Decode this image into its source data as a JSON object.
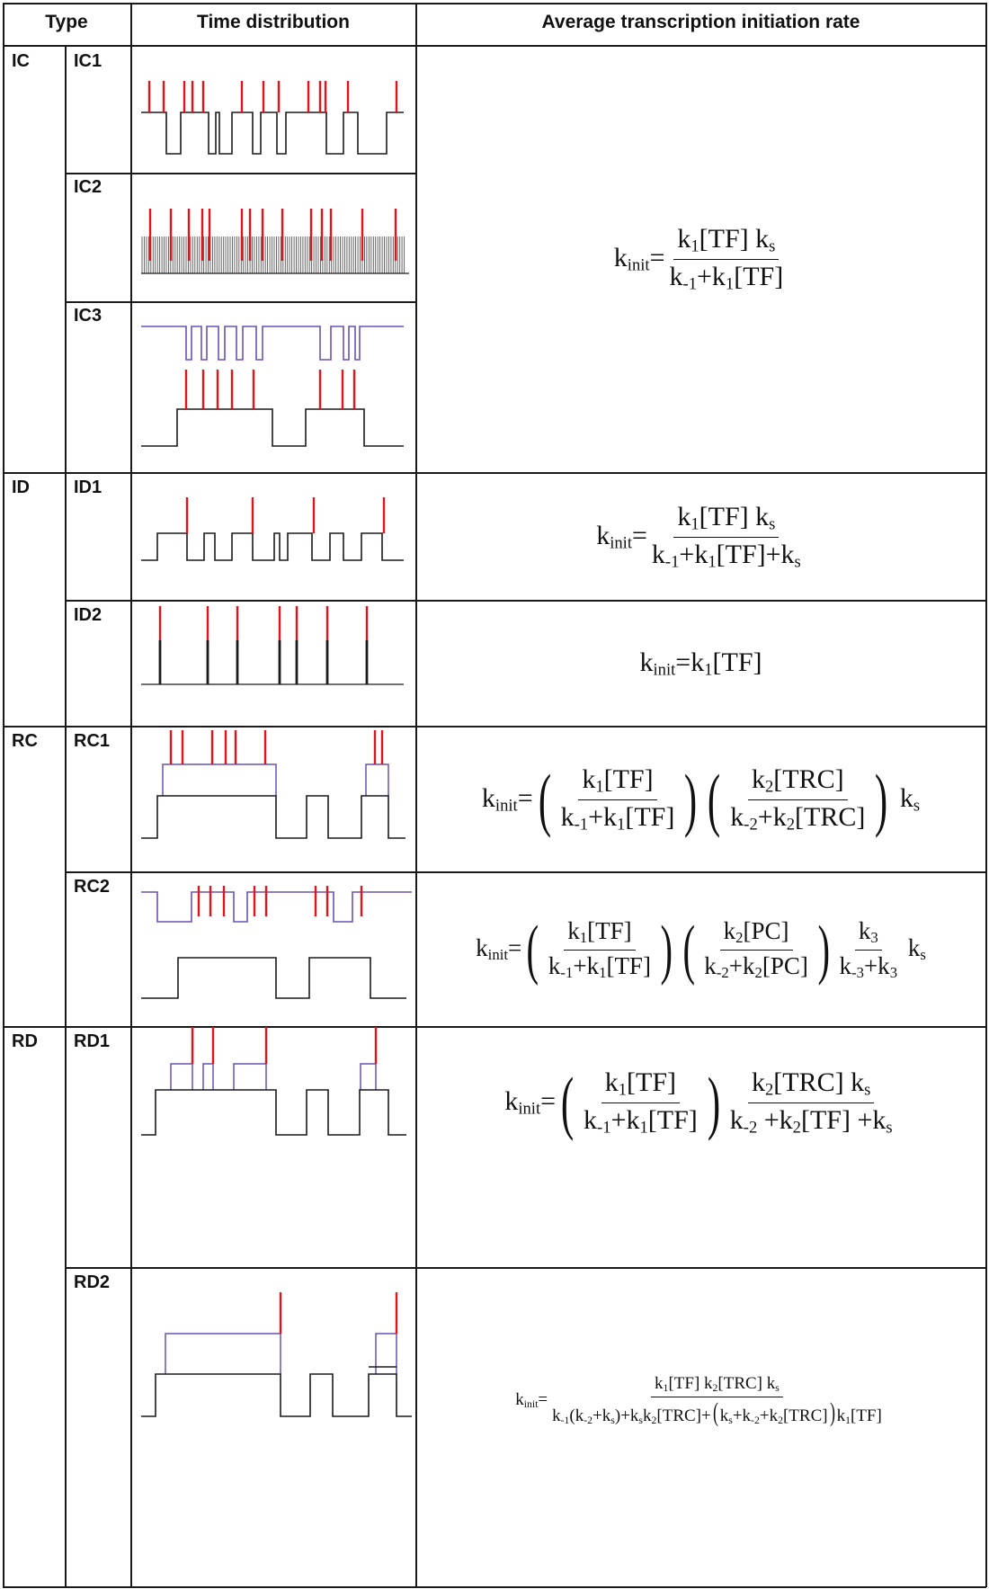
{
  "headers": {
    "type": "Type",
    "time_distribution": "Time distribution",
    "rate": "Average transcription initiation rate"
  },
  "groups": [
    "IC",
    "ID",
    "RC",
    "RD"
  ],
  "subtypes": [
    "IC1",
    "IC2",
    "IC3",
    "ID1",
    "ID2",
    "RC1",
    "RC2",
    "RD1",
    "RD2"
  ],
  "formulas": {
    "IC": "k_init = k1[TF] ks / (k-1 + k1[TF])",
    "ID1": "k_init = k1[TF] ks / (k-1 + k1[TF] + ks)",
    "ID2": "k_init = k1[TF]",
    "RC1": "k_init = (k1[TF] / (k-1 + k1[TF])) (k2[TRC] / (k-2 + k2[TRC])) ks",
    "RC2": "k_init = (k1[TF] / (k-1 + k1[TF])) (k2[PC] / (k-2 + k2[PC])) (k3 / (k-3 + k3)) ks",
    "RD1": "k_init = (k1[TF] / (k-1 + k1[TF])) (k2[TRC] ks / (k-2 + k2[TF] + ks))",
    "RD2": "k_init = k1[TF] k2[TRC] ks / (k-1(k-2 + ks) + ks k2[TRC] + (ks + k-2 + k2[TRC]) k1[TF])"
  },
  "colors": {
    "red_spike": "#e0151b",
    "black_trace": "#1a1a1a",
    "purple_trace": "#6a50b5",
    "grid": "#1a1a1a"
  }
}
